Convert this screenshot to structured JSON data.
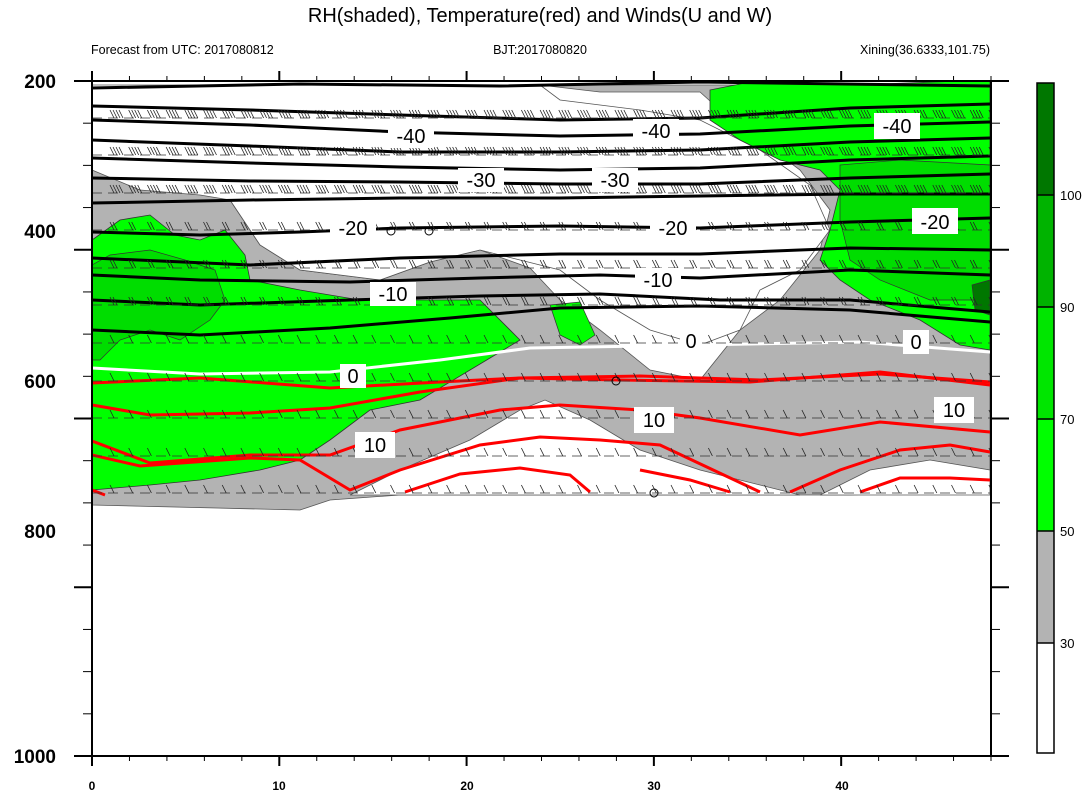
{
  "chart_data": {
    "type": "contour",
    "title": "RH(shaded), Temperature(red) and Winds(U and W)",
    "subtitle_left": "Forecast from UTC: 2017080812",
    "subtitle_center": "BJT:2017080820",
    "subtitle_right": "Xining(36.6333,101.75)",
    "x_ticks": [
      "0",
      "10",
      "20",
      "30",
      "40"
    ],
    "xlim": [
      0,
      48
    ],
    "y_ticks": [
      "200",
      "400",
      "600",
      "800",
      "1000"
    ],
    "ylim": [
      1000,
      200
    ],
    "y_inverted": true,
    "colorbar": {
      "levels": [
        "30",
        "50",
        "70",
        "90",
        "100"
      ],
      "colors": [
        "#ffffff",
        "#b3b3b3",
        "#00ff00",
        "#00e600",
        "#00b300",
        "#007700"
      ]
    },
    "rh_shading": [
      {
        "range": "30-50",
        "color": "#b3b3b3"
      },
      {
        "range": "50-70",
        "color": "#00ff00"
      },
      {
        "range": "70-90",
        "color": "#00e600"
      },
      {
        "range": ">90",
        "color": "#007700"
      }
    ],
    "temperature_contours": [
      {
        "level": -40,
        "color": "#000000",
        "labels": [
          "-40",
          "-40",
          "-40"
        ]
      },
      {
        "level": -30,
        "color": "#000000",
        "labels": [
          "-30",
          "-30"
        ]
      },
      {
        "level": -20,
        "color": "#000000",
        "labels": [
          "-20",
          "-20",
          "-20"
        ]
      },
      {
        "level": -10,
        "color": "#000000",
        "labels": [
          "-10",
          "-10"
        ]
      },
      {
        "level": 0,
        "color": "#ffffff",
        "labels": [
          "0",
          "0",
          "0"
        ]
      },
      {
        "level": 10,
        "color": "#ff0000",
        "labels": [
          "10",
          "10",
          "10"
        ]
      }
    ],
    "wind_barbs": "U and W wind barbs at all levels from 200 to 750 hPa"
  }
}
